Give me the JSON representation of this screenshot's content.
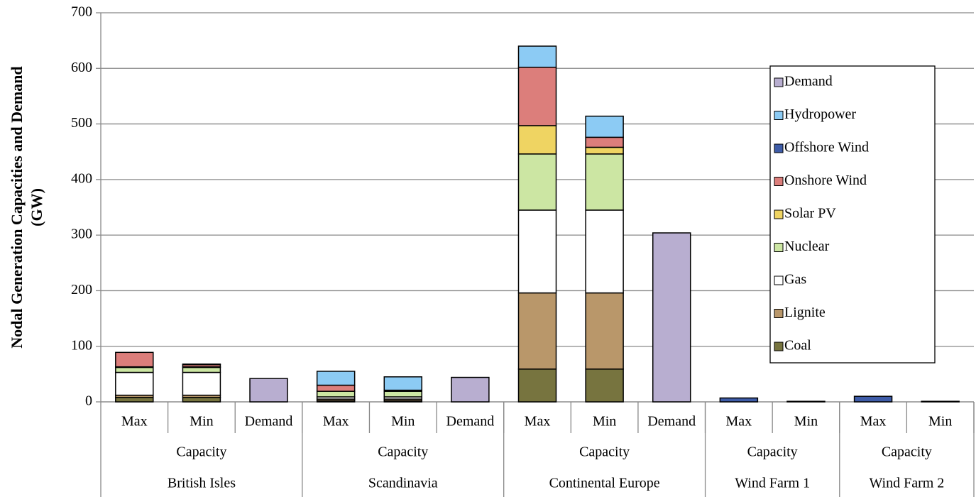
{
  "chart_data": {
    "type": "stacked-bar",
    "y_label": [
      "Nodal Generation Capacities and Demand",
      "(GW)"
    ],
    "groups": [
      {
        "name": "British Isles",
        "subgroups": [
          {
            "name": "Capacity",
            "categories": [
              "Max",
              "Min",
              "Demand"
            ]
          }
        ]
      },
      {
        "name": "Scandinavia",
        "subgroups": [
          {
            "name": "Capacity",
            "categories": [
              "Max",
              "Min",
              "Demand"
            ]
          }
        ]
      },
      {
        "name": "Continental Europe",
        "subgroups": [
          {
            "name": "Capacity",
            "categories": [
              "Max",
              "Min",
              "Demand"
            ]
          }
        ]
      },
      {
        "name": "Wind Farm 1",
        "subgroups": [
          {
            "name": "Capacity",
            "categories": [
              "Max",
              "Min"
            ]
          }
        ]
      },
      {
        "name": "Wind Farm 2",
        "subgroups": [
          {
            "name": "Capacity",
            "categories": [
              "Max",
              "Min"
            ]
          }
        ]
      }
    ],
    "series": [
      {
        "name": "Coal",
        "color": "#77743f",
        "values": [
          8,
          8,
          null,
          2,
          2,
          null,
          59,
          59,
          null,
          null,
          null,
          null,
          null
        ]
      },
      {
        "name": "Lignite",
        "color": "#b9976a",
        "values": [
          4,
          4,
          null,
          3,
          3,
          null,
          137,
          137,
          null,
          null,
          null,
          null,
          null
        ]
      },
      {
        "name": "Gas",
        "color": "#ffffff",
        "values": [
          41,
          41,
          null,
          4,
          4,
          null,
          149,
          149,
          null,
          null,
          null,
          null,
          null
        ]
      },
      {
        "name": "Nuclear",
        "color": "#cce6a3",
        "values": [
          9,
          9,
          null,
          10,
          10,
          null,
          101,
          101,
          null,
          null,
          null,
          null,
          null
        ]
      },
      {
        "name": "Solar PV",
        "color": "#efd462",
        "values": [
          1,
          1,
          null,
          null,
          null,
          null,
          51,
          12,
          null,
          null,
          null,
          null,
          null
        ]
      },
      {
        "name": "Onshore Wind",
        "color": "#dc7e7b",
        "values": [
          26,
          4,
          null,
          11,
          2,
          null,
          105,
          18,
          null,
          null,
          null,
          null,
          null
        ]
      },
      {
        "name": "Offshore Wind",
        "color": "#3e5ca8",
        "values": [
          null,
          1,
          null,
          null,
          null,
          null,
          null,
          null,
          null,
          7,
          1,
          10,
          1
        ]
      },
      {
        "name": "Hydropower",
        "color": "#8ccbf4",
        "values": [
          null,
          null,
          null,
          25,
          24,
          null,
          38,
          38,
          null,
          null,
          null,
          null,
          null
        ]
      },
      {
        "name": "Demand",
        "color": "#b8aed0",
        "values": [
          null,
          null,
          42,
          null,
          null,
          44,
          null,
          null,
          304,
          null,
          null,
          null,
          null
        ]
      }
    ],
    "ylim": [
      0,
      700
    ],
    "yticks": [
      0,
      100,
      200,
      300,
      400,
      500,
      600,
      700
    ],
    "grid": true,
    "legend": "right"
  }
}
